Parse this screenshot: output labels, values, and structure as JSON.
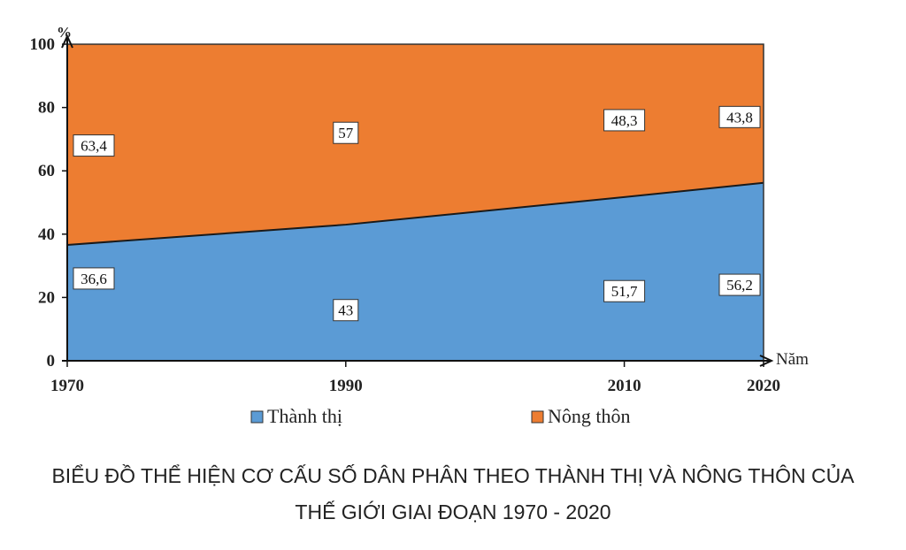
{
  "chart_data": {
    "type": "area",
    "stacked": true,
    "x": [
      1970,
      1990,
      2010,
      2020
    ],
    "series": [
      {
        "name": "Thành thị",
        "values": [
          36.6,
          43,
          51.7,
          56.2
        ],
        "color": "#5b9bd5",
        "labels": [
          "36,6",
          "43",
          "51,7",
          "56,2"
        ]
      },
      {
        "name": "Nông thôn",
        "values": [
          63.4,
          57,
          48.3,
          43.8
        ],
        "color": "#ed7d31",
        "labels": [
          "63,4",
          "57",
          "48,3",
          "43,8"
        ]
      }
    ],
    "ylim": [
      0,
      100
    ],
    "yticks": [
      0,
      20,
      40,
      60,
      80,
      100
    ],
    "xticks": [
      "1970",
      "1990",
      "2010",
      "2020"
    ],
    "ylabel": "%",
    "xlabel": "Năm",
    "legend_position": "bottom",
    "grid": false
  },
  "caption": {
    "line1": "BIỂU ĐỒ THỂ HIỆN CƠ CẤU SỐ DÂN PHÂN THEO THÀNH THỊ VÀ NÔNG THÔN CỦA",
    "line2": "THẾ GIỚI GIAI ĐOẠN 1970 - 2020"
  }
}
